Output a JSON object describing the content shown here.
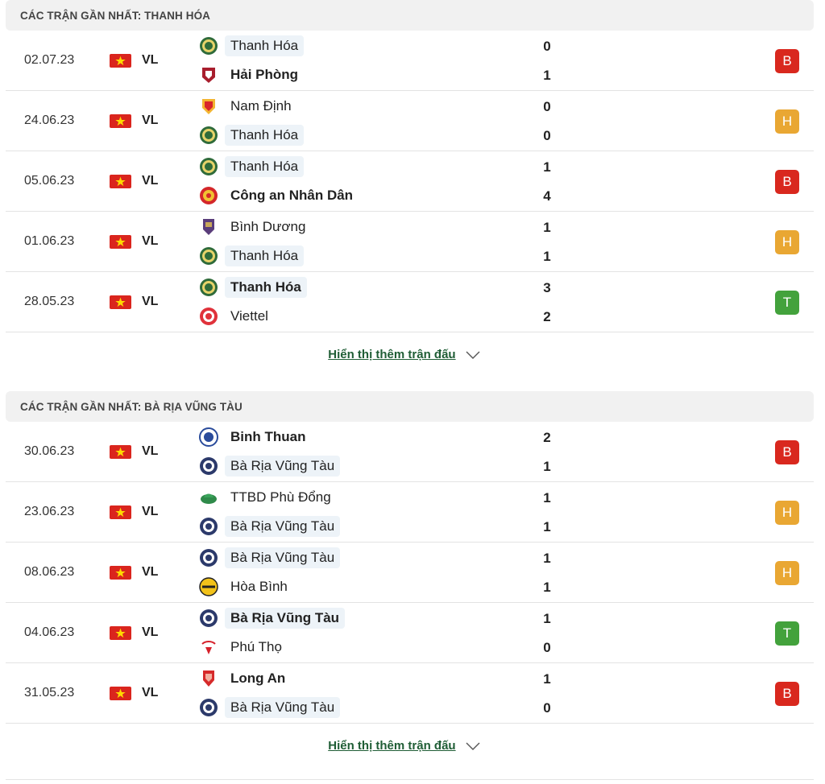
{
  "sections": [
    {
      "title": "CÁC TRẬN GẦN NHẤT: THANH HÓA",
      "more_label": "Hiển thị thêm trận đấu",
      "matches": [
        {
          "date": "02.07.23",
          "league": "VL",
          "home": {
            "name": "Thanh Hóa",
            "logo": "thanh-hoa-logo",
            "win": false,
            "hl": true
          },
          "away": {
            "name": "Hải Phòng",
            "logo": "hai-phong-logo",
            "win": true,
            "hl": false
          },
          "home_score": "0",
          "away_score": "1",
          "result": "B"
        },
        {
          "date": "24.06.23",
          "league": "VL",
          "home": {
            "name": "Nam Định",
            "logo": "nam-dinh-logo",
            "win": false,
            "hl": false
          },
          "away": {
            "name": "Thanh Hóa",
            "logo": "thanh-hoa-logo",
            "win": false,
            "hl": true
          },
          "home_score": "0",
          "away_score": "0",
          "result": "H"
        },
        {
          "date": "05.06.23",
          "league": "VL",
          "home": {
            "name": "Thanh Hóa",
            "logo": "thanh-hoa-logo",
            "win": false,
            "hl": true
          },
          "away": {
            "name": "Công an Nhân Dân",
            "logo": "cong-an-logo",
            "win": true,
            "hl": false
          },
          "home_score": "1",
          "away_score": "4",
          "result": "B"
        },
        {
          "date": "01.06.23",
          "league": "VL",
          "home": {
            "name": "Bình Dương",
            "logo": "binh-duong-logo",
            "win": false,
            "hl": false
          },
          "away": {
            "name": "Thanh Hóa",
            "logo": "thanh-hoa-logo",
            "win": false,
            "hl": true
          },
          "home_score": "1",
          "away_score": "1",
          "result": "H"
        },
        {
          "date": "28.05.23",
          "league": "VL",
          "home": {
            "name": "Thanh Hóa",
            "logo": "thanh-hoa-logo",
            "win": true,
            "hl": true
          },
          "away": {
            "name": "Viettel",
            "logo": "viettel-logo",
            "win": false,
            "hl": false
          },
          "home_score": "3",
          "away_score": "2",
          "result": "T"
        }
      ]
    },
    {
      "title": "CÁC TRẬN GẦN NHẤT: BÀ RỊA VŨNG TÀU",
      "more_label": "Hiển thị thêm trận đấu",
      "matches": [
        {
          "date": "30.06.23",
          "league": "VL",
          "home": {
            "name": "Binh Thuan",
            "logo": "binh-thuan-logo",
            "win": true,
            "hl": false
          },
          "away": {
            "name": "Bà Rịa Vũng Tàu",
            "logo": "ba-ria-logo",
            "win": false,
            "hl": true
          },
          "home_score": "2",
          "away_score": "1",
          "result": "B"
        },
        {
          "date": "23.06.23",
          "league": "VL",
          "home": {
            "name": "TTBD Phù Đổng",
            "logo": "phu-dong-logo",
            "win": false,
            "hl": false
          },
          "away": {
            "name": "Bà Rịa Vũng Tàu",
            "logo": "ba-ria-logo",
            "win": false,
            "hl": true
          },
          "home_score": "1",
          "away_score": "1",
          "result": "H"
        },
        {
          "date": "08.06.23",
          "league": "VL",
          "home": {
            "name": "Bà Rịa Vũng Tàu",
            "logo": "ba-ria-logo",
            "win": false,
            "hl": true
          },
          "away": {
            "name": "Hòa Bình",
            "logo": "hoa-binh-logo",
            "win": false,
            "hl": false
          },
          "home_score": "1",
          "away_score": "1",
          "result": "H"
        },
        {
          "date": "04.06.23",
          "league": "VL",
          "home": {
            "name": "Bà Rịa Vũng Tàu",
            "logo": "ba-ria-logo",
            "win": true,
            "hl": true
          },
          "away": {
            "name": "Phú Thọ",
            "logo": "phu-tho-logo",
            "win": false,
            "hl": false
          },
          "home_score": "1",
          "away_score": "0",
          "result": "T"
        },
        {
          "date": "31.05.23",
          "league": "VL",
          "home": {
            "name": "Long An",
            "logo": "long-an-logo",
            "win": true,
            "hl": false
          },
          "away": {
            "name": "Bà Rịa Vũng Tàu",
            "logo": "ba-ria-logo",
            "win": false,
            "hl": true
          },
          "home_score": "1",
          "away_score": "0",
          "result": "B"
        }
      ]
    }
  ],
  "colors": {
    "loss": "#d9281e",
    "draw": "#e9a733",
    "win": "#43a23c",
    "link": "#1f5d35"
  }
}
